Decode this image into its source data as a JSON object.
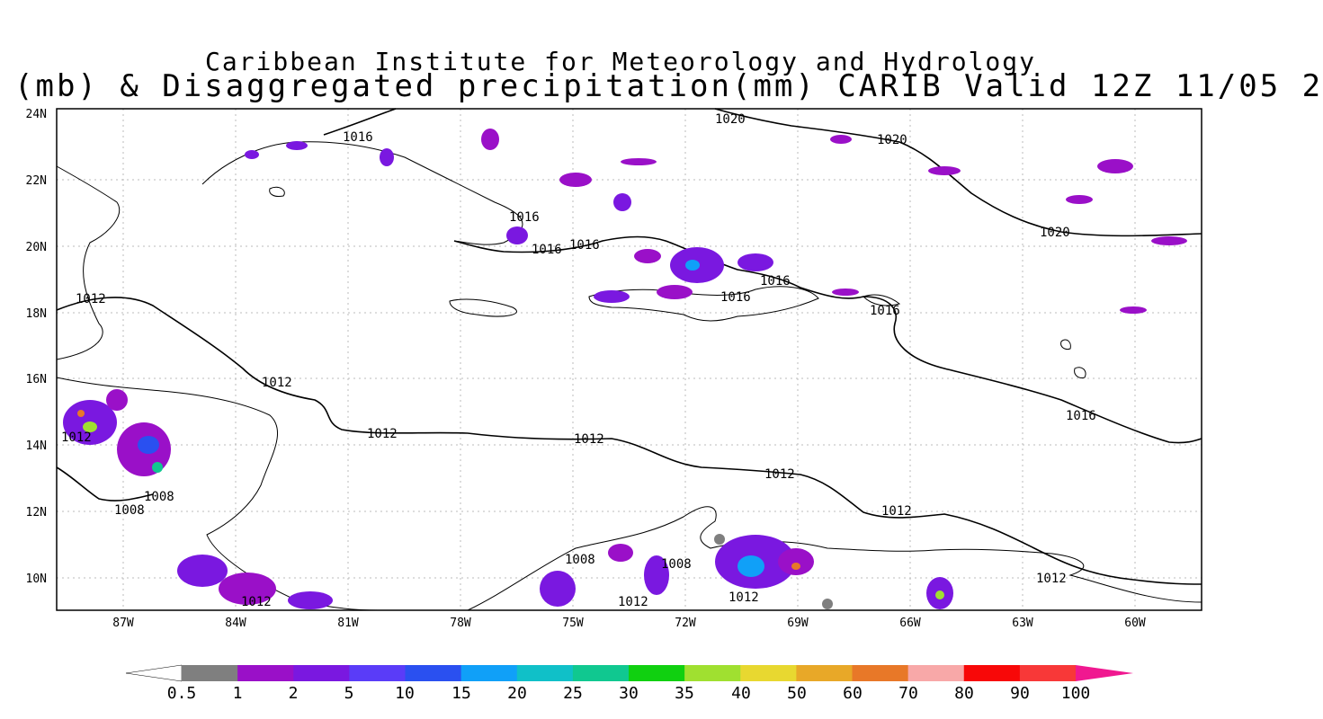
{
  "map": {
    "title_line1": "Caribbean Institute for Meteorology and Hydrology",
    "title_line2": "(mb) & Disaggregated precipitation(mm) CARIB Valid 12Z 11/05 2",
    "lat_labels": [
      "24N",
      "22N",
      "20N",
      "18N",
      "16N",
      "14N",
      "12N",
      "10N"
    ],
    "lon_labels": [
      "87W",
      "84W",
      "81W",
      "78W",
      "75W",
      "72W",
      "69W",
      "66W",
      "63W",
      "60W"
    ],
    "isobars": {
      "l1020a": "1020",
      "l1020b": "1020",
      "l1020c": "1020",
      "l1016a": "1016",
      "l1016b": "1016",
      "l1016c": "1016",
      "l1016d": "1016",
      "l1016e": "1016",
      "l1016f": "1016",
      "l1016g": "1016",
      "l1016h": "1016",
      "l1012a": "1012",
      "l1012b": "1012",
      "l1012c": "1012",
      "l1012d": "1012",
      "l1012e": "1012",
      "l1012f": "1012",
      "l1012g": "1012",
      "l1012h": "1012",
      "l1012i": "1012",
      "l1012j": "1012",
      "l1012k": "1012",
      "l1008a": "1008",
      "l1008b": "1008",
      "l1008c": "1008",
      "l1008d": "1008"
    }
  },
  "colorbar": {
    "ticks": [
      "0.5",
      "1",
      "2",
      "5",
      "10",
      "15",
      "20",
      "25",
      "30",
      "35",
      "40",
      "50",
      "60",
      "70",
      "80",
      "90",
      "100"
    ],
    "colors": [
      "#7f7f7f",
      "#9a10c8",
      "#7a18e0",
      "#5a3cf8",
      "#2a50f0",
      "#10a0f8",
      "#10c0c8",
      "#10c890",
      "#10d010",
      "#a0e030",
      "#e8d830",
      "#e8a828",
      "#e87828",
      "#f8a8a8",
      "#f80808",
      "#f83838"
    ],
    "under_color": "#ffffff",
    "over_color": "#f01890"
  }
}
